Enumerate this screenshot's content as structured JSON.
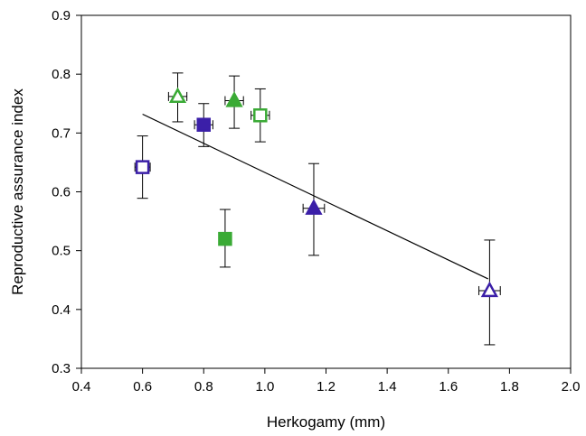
{
  "chart_data": {
    "type": "scatter",
    "title": "",
    "xlabel": "Herkogamy (mm)",
    "ylabel": "Reproductive assurance index",
    "xlim": [
      0.4,
      2.0
    ],
    "ylim": [
      0.3,
      0.9
    ],
    "xticks": [
      0.4,
      0.6,
      0.8,
      1.0,
      1.2,
      1.4,
      1.6,
      1.8,
      2.0
    ],
    "yticks": [
      0.3,
      0.4,
      0.5,
      0.6,
      0.7,
      0.8,
      0.9
    ],
    "xtick_labels": [
      "0.4",
      "0.6",
      "0.8",
      "1.0",
      "1.2",
      "1.4",
      "1.6",
      "1.8",
      "2.0"
    ],
    "ytick_labels": [
      "0.3",
      "0.4",
      "0.5",
      "0.6",
      "0.7",
      "0.8",
      "0.9"
    ],
    "grid": false,
    "colors": {
      "green": "#3aaa35",
      "purple": "#3b1fa8",
      "line": "#000000"
    },
    "points": [
      {
        "x": 0.6,
        "y": 0.642,
        "xerr": 0.025,
        "yerr_low": 0.053,
        "yerr_high": 0.053,
        "marker": "square",
        "filled": false,
        "color": "purple"
      },
      {
        "x": 0.715,
        "y": 0.762,
        "xerr": 0.03,
        "yerr_low": 0.043,
        "yerr_high": 0.04,
        "marker": "triangle",
        "filled": false,
        "color": "green"
      },
      {
        "x": 0.8,
        "y": 0.714,
        "xerr": 0.03,
        "yerr_low": 0.037,
        "yerr_high": 0.036,
        "marker": "square",
        "filled": true,
        "color": "purple"
      },
      {
        "x": 0.87,
        "y": 0.52,
        "xerr": 0.0,
        "yerr_low": 0.048,
        "yerr_high": 0.05,
        "marker": "square",
        "filled": true,
        "color": "green"
      },
      {
        "x": 0.9,
        "y": 0.755,
        "xerr": 0.03,
        "yerr_low": 0.047,
        "yerr_high": 0.042,
        "marker": "triangle",
        "filled": true,
        "color": "green"
      },
      {
        "x": 0.985,
        "y": 0.73,
        "xerr": 0.03,
        "yerr_low": 0.045,
        "yerr_high": 0.045,
        "marker": "square",
        "filled": false,
        "color": "green"
      },
      {
        "x": 1.16,
        "y": 0.572,
        "xerr": 0.035,
        "yerr_low": 0.08,
        "yerr_high": 0.076,
        "marker": "triangle",
        "filled": true,
        "color": "purple"
      },
      {
        "x": 1.735,
        "y": 0.432,
        "xerr": 0.035,
        "yerr_low": 0.092,
        "yerr_high": 0.086,
        "marker": "triangle",
        "filled": false,
        "color": "purple"
      }
    ],
    "trendline": {
      "x": [
        0.6,
        1.73
      ],
      "y": [
        0.732,
        0.452
      ]
    }
  }
}
